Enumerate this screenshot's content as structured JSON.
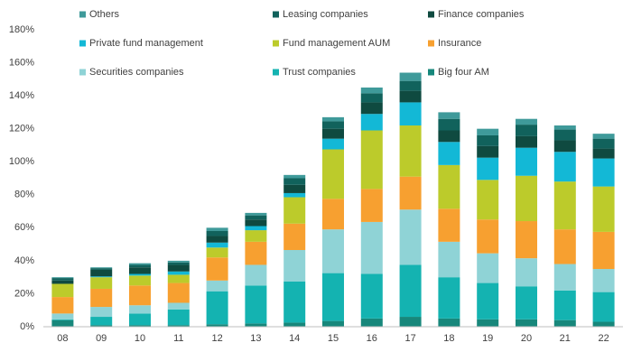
{
  "chart_data": {
    "type": "stacked_bar",
    "categories": [
      "08",
      "09",
      "10",
      "11",
      "12",
      "13",
      "14",
      "15",
      "16",
      "17",
      "18",
      "19",
      "20",
      "21",
      "22"
    ],
    "series": [
      {
        "name": "Big four AM",
        "color": "#17877b",
        "values": [
          4,
          1,
          1,
          1,
          1.5,
          2,
          2.5,
          3.5,
          5,
          6,
          5,
          4.5,
          4.5,
          4,
          3
        ]
      },
      {
        "name": "Trust companies",
        "color": "#14b3b1",
        "values": [
          0.5,
          5,
          7,
          9.5,
          20,
          23,
          25,
          29,
          27,
          31.5,
          25,
          22,
          20,
          18,
          18
        ]
      },
      {
        "name": "Securities companies",
        "color": "#8fd3d6",
        "values": [
          3.5,
          6,
          5,
          4,
          6.5,
          12.5,
          19,
          26.5,
          31.5,
          33.5,
          21.5,
          18,
          17,
          16,
          14
        ]
      },
      {
        "name": "Insurance",
        "color": "#f7a030",
        "values": [
          10,
          11,
          12,
          12,
          14,
          14,
          16,
          18.5,
          20,
          20,
          20,
          20.5,
          22.5,
          21,
          22.5
        ]
      },
      {
        "name": "Fund management AUM",
        "color": "#bccb2b",
        "values": [
          8,
          7,
          6,
          5,
          6,
          7,
          16,
          30,
          35.5,
          31,
          26.5,
          24,
          27.5,
          29,
          27.5
        ]
      },
      {
        "name": "Private fund management",
        "color": "#13b8d6",
        "values": [
          0,
          0.5,
          1,
          2,
          3,
          2.5,
          2.5,
          6.5,
          10,
          14,
          14,
          13.5,
          17,
          18,
          17
        ]
      },
      {
        "name": "Finance companies",
        "color": "#0f4a40",
        "values": [
          2,
          4,
          4,
          4,
          4,
          4,
          5,
          6,
          7,
          7,
          7,
          7,
          7,
          7,
          6
        ]
      },
      {
        "name": "Leasing companies",
        "color": "#11625c",
        "values": [
          1.5,
          1,
          1.5,
          1.5,
          3,
          2.5,
          4,
          4.5,
          5.5,
          6,
          7,
          6.5,
          7,
          6.5,
          6
        ]
      },
      {
        "name": "Others",
        "color": "#3f9a9a",
        "values": [
          0.5,
          0.5,
          1,
          1,
          2,
          1.5,
          2,
          2.5,
          3.5,
          5,
          4,
          4,
          3.5,
          2.5,
          3
        ]
      }
    ],
    "ylim": [
      0,
      180
    ],
    "yticks": [
      {
        "value": 0,
        "label": "0%"
      },
      {
        "value": 20,
        "label": "20%"
      },
      {
        "value": 40,
        "label": "40%"
      },
      {
        "value": 60,
        "label": "60%"
      },
      {
        "value": 80,
        "label": "80%"
      },
      {
        "value": 100,
        "label": "100%"
      },
      {
        "value": 120,
        "label": "120%"
      },
      {
        "value": 140,
        "label": "140%"
      },
      {
        "value": 160,
        "label": "160%"
      },
      {
        "value": 180,
        "label": "180%"
      }
    ],
    "grid": false
  }
}
